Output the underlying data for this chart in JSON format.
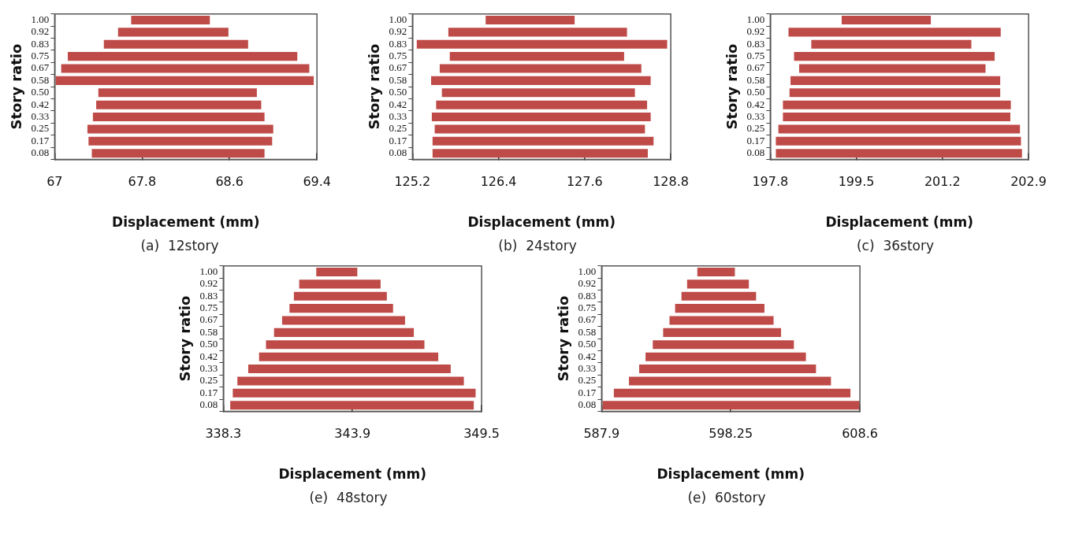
{
  "chart_data": [
    {
      "type": "bar",
      "orientation": "horizontal",
      "xlabel": "Displacement (mm)",
      "ylabel": "Story ratio",
      "annotations": [
        "(a)  12story"
      ],
      "categories": [
        "1.00",
        "0.92",
        "0.83",
        "0.75",
        "0.67",
        "0.58",
        "0.50",
        "0.42",
        "0.33",
        "0.25",
        "0.17",
        "0.08"
      ],
      "color": "#be4b48",
      "xlim": [
        67,
        69.4
      ],
      "xticks": [
        67,
        67.8,
        68.6,
        69.4
      ],
      "grid": false,
      "legend": false,
      "base": [
        67.7,
        67.58,
        67.45,
        67.12,
        67.06,
        67.01,
        67.4,
        67.38,
        67.35,
        67.3,
        67.31,
        67.34
      ],
      "values": [
        0.72,
        1.01,
        1.32,
        2.1,
        2.27,
        2.36,
        1.45,
        1.51,
        1.57,
        1.7,
        1.68,
        1.58
      ]
    },
    {
      "type": "bar",
      "orientation": "horizontal",
      "xlabel": "Displacement (mm)",
      "ylabel": "Story ratio",
      "annotations": [
        "(b)  24story"
      ],
      "categories": [
        "1.00",
        "0.92",
        "0.83",
        "0.75",
        "0.67",
        "0.58",
        "0.50",
        "0.42",
        "0.33",
        "0.25",
        "0.17",
        "0.08"
      ],
      "color": "#be4b48",
      "xlim": [
        125.2,
        128.8
      ],
      "xticks": [
        125.2,
        126.4,
        127.6,
        128.8
      ],
      "grid": false,
      "legend": false,
      "base": [
        126.22,
        125.7,
        125.26,
        125.72,
        125.58,
        125.46,
        125.61,
        125.53,
        125.47,
        125.51,
        125.48,
        125.48
      ],
      "values": [
        1.24,
        2.49,
        3.49,
        2.43,
        2.81,
        3.06,
        2.69,
        2.94,
        3.05,
        2.93,
        3.08,
        3.0
      ]
    },
    {
      "type": "bar",
      "orientation": "horizontal",
      "xlabel": "Displacement (mm)",
      "ylabel": "Story ratio",
      "annotations": [
        "(c)  36story"
      ],
      "categories": [
        "1.00",
        "0.92",
        "0.83",
        "0.75",
        "0.67",
        "0.58",
        "0.50",
        "0.42",
        "0.33",
        "0.25",
        "0.17",
        "0.08"
      ],
      "color": "#be4b48",
      "xlim": [
        197.8,
        202.9
      ],
      "xticks": [
        197.8,
        199.5,
        201.2,
        202.9
      ],
      "grid": false,
      "legend": false,
      "base": [
        199.21,
        198.16,
        198.61,
        198.27,
        198.37,
        198.2,
        198.18,
        198.05,
        198.05,
        197.96,
        197.91,
        197.91
      ],
      "values": [
        1.76,
        4.19,
        3.16,
        3.96,
        3.68,
        4.14,
        4.16,
        4.5,
        4.49,
        4.77,
        4.84,
        4.86
      ]
    },
    {
      "type": "bar",
      "orientation": "horizontal",
      "xlabel": "Displacement (mm)",
      "ylabel": "Story ratio",
      "annotations": [
        "(e)  48story"
      ],
      "categories": [
        "1.00",
        "0.92",
        "0.83",
        "0.75",
        "0.67",
        "0.58",
        "0.50",
        "0.42",
        "0.33",
        "0.25",
        "0.17",
        "0.08"
      ],
      "color": "#be4b48",
      "xlim": [
        338.3,
        349.5
      ],
      "xticks": [
        338.3,
        343.9,
        349.5
      ],
      "grid": false,
      "legend": false,
      "base": [
        342.33,
        341.59,
        341.36,
        341.17,
        340.85,
        340.5,
        340.15,
        339.85,
        339.38,
        338.91,
        338.71,
        338.6
      ],
      "values": [
        1.78,
        3.53,
        4.03,
        4.49,
        5.33,
        6.06,
        6.87,
        7.77,
        8.78,
        9.82,
        10.53,
        10.56
      ]
    },
    {
      "type": "bar",
      "orientation": "horizontal",
      "xlabel": "Displacement (mm)",
      "ylabel": "Story ratio",
      "annotations": [
        "(e)  60story"
      ],
      "categories": [
        "1.00",
        "0.92",
        "0.83",
        "0.75",
        "0.67",
        "0.58",
        "0.50",
        "0.42",
        "0.33",
        "0.25",
        "0.17",
        "0.08"
      ],
      "color": "#be4b48",
      "xlim": [
        587.9,
        608.6
      ],
      "xticks": [
        587.9,
        598.25,
        608.6
      ],
      "grid": false,
      "legend": false,
      "base": [
        595.57,
        594.75,
        594.3,
        593.79,
        593.34,
        592.83,
        592.0,
        591.42,
        590.91,
        590.09,
        588.88,
        587.99
      ],
      "values": [
        3.01,
        4.95,
        5.98,
        7.16,
        8.34,
        9.45,
        11.31,
        12.85,
        14.17,
        16.19,
        18.96,
        20.59
      ]
    }
  ]
}
